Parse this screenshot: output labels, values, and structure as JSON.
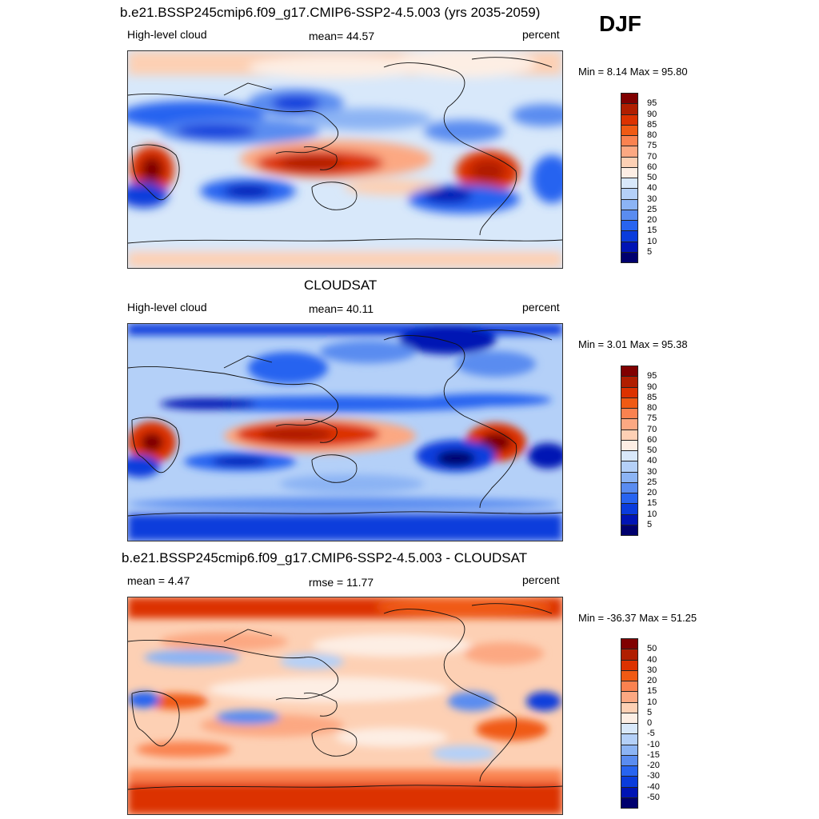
{
  "header": {
    "case_title": "b.e21.BSSP245cmip6.f09_g17.CMIP6-SSP2-4.5.003 (yrs 2035-2059)",
    "season": "DJF"
  },
  "panels": [
    {
      "title": "",
      "left": "High-level cloud",
      "center": "mean=  44.57",
      "right": "percent",
      "minmax": "Min =   8.14 Max =  95.80",
      "colorbar_labels": [
        "95",
        "90",
        "85",
        "80",
        "75",
        "70",
        "60",
        "50",
        "40",
        "30",
        "25",
        "20",
        "15",
        "10",
        "5"
      ]
    },
    {
      "title": "CLOUDSAT",
      "left": "High-level cloud",
      "center": "mean=  40.11",
      "right": "percent",
      "minmax": "Min =   3.01 Max =  95.38",
      "colorbar_labels": [
        "95",
        "90",
        "85",
        "80",
        "75",
        "70",
        "60",
        "50",
        "40",
        "30",
        "25",
        "20",
        "15",
        "10",
        "5"
      ]
    },
    {
      "title": "b.e21.BSSP245cmip6.f09_g17.CMIP6-SSP2-4.5.003 - CLOUDSAT",
      "left": "mean =   4.47",
      "center": "rmse =  11.77",
      "right": "percent",
      "minmax": "Min = -36.37 Max =  51.25",
      "colorbar_labels": [
        "50",
        "40",
        "30",
        "20",
        "15",
        "10",
        "5",
        "0",
        "-5",
        "-10",
        "-15",
        "-20",
        "-30",
        "-40",
        "-50"
      ]
    }
  ],
  "colors": {
    "colorbar": [
      "#800000",
      "#b01e00",
      "#dc3200",
      "#f05a14",
      "#fa8250",
      "#fca882",
      "#fdd0b4",
      "#fdeee4",
      "#d8e8fa",
      "#b4d0f8",
      "#8cb4f4",
      "#5a8cf0",
      "#2864f0",
      "#0a3cdc",
      "#0014b4",
      "#00006e"
    ],
    "land_outline": "#111111"
  }
}
